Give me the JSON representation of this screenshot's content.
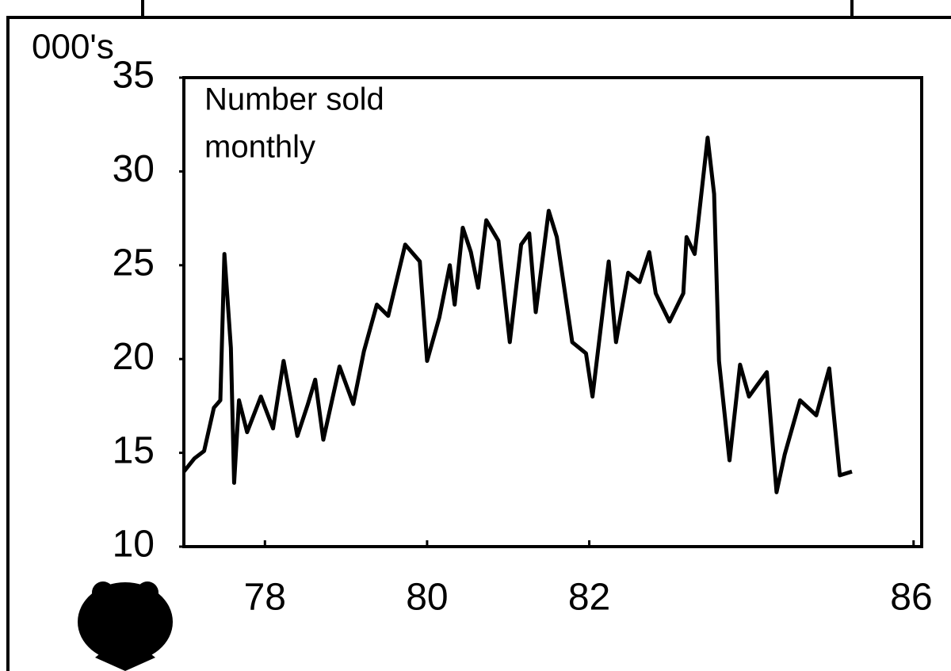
{
  "chart_data": {
    "type": "line",
    "y_unit_label": "000's",
    "annotation": [
      "Number sold",
      "monthly"
    ],
    "x": [
      77.0,
      77.13,
      77.25,
      77.37,
      77.45,
      77.5,
      77.58,
      77.62,
      77.68,
      77.78,
      77.95,
      78.1,
      78.23,
      78.4,
      78.53,
      78.62,
      78.72,
      78.92,
      79.09,
      79.22,
      79.38,
      79.52,
      79.73,
      79.91,
      80.0,
      80.15,
      80.28,
      80.34,
      80.44,
      80.54,
      80.63,
      80.73,
      80.88,
      81.02,
      81.16,
      81.26,
      81.34,
      81.5,
      81.6,
      81.79,
      81.96,
      82.04,
      82.24,
      82.33,
      82.48,
      82.62,
      82.74,
      82.82,
      82.99,
      83.16,
      83.2,
      83.3,
      83.46,
      83.54,
      83.6,
      83.73,
      83.86,
      83.97,
      84.07,
      84.19,
      84.31,
      84.41,
      84.6,
      84.8,
      84.96,
      85.09,
      85.24
    ],
    "series": [
      {
        "name": "Number sold monthly",
        "color": "#000000",
        "values": [
          14.0,
          14.7,
          15.1,
          17.4,
          17.8,
          25.6,
          20.6,
          13.4,
          17.8,
          16.1,
          18.0,
          16.3,
          19.9,
          15.9,
          17.6,
          18.9,
          15.7,
          19.6,
          17.6,
          20.4,
          22.9,
          22.3,
          26.1,
          25.2,
          19.9,
          22.2,
          25.0,
          22.9,
          27.0,
          25.7,
          23.8,
          27.4,
          26.3,
          20.9,
          26.1,
          26.7,
          22.5,
          27.9,
          26.5,
          20.9,
          20.3,
          18.0,
          25.2,
          20.9,
          24.6,
          24.1,
          25.7,
          23.5,
          22.0,
          23.5,
          26.5,
          25.6,
          31.8,
          28.8,
          19.9,
          14.6,
          19.7,
          18.0,
          18.6,
          19.3,
          12.9,
          14.9,
          17.8,
          17.0,
          19.5,
          13.8,
          14.0
        ]
      }
    ],
    "xlim": [
      77,
      86.1
    ],
    "xticks": [
      78,
      80,
      82,
      86
    ],
    "ylim": [
      10,
      35
    ],
    "yticks": [
      10,
      15,
      20,
      25,
      30,
      35
    ],
    "grid": false
  }
}
